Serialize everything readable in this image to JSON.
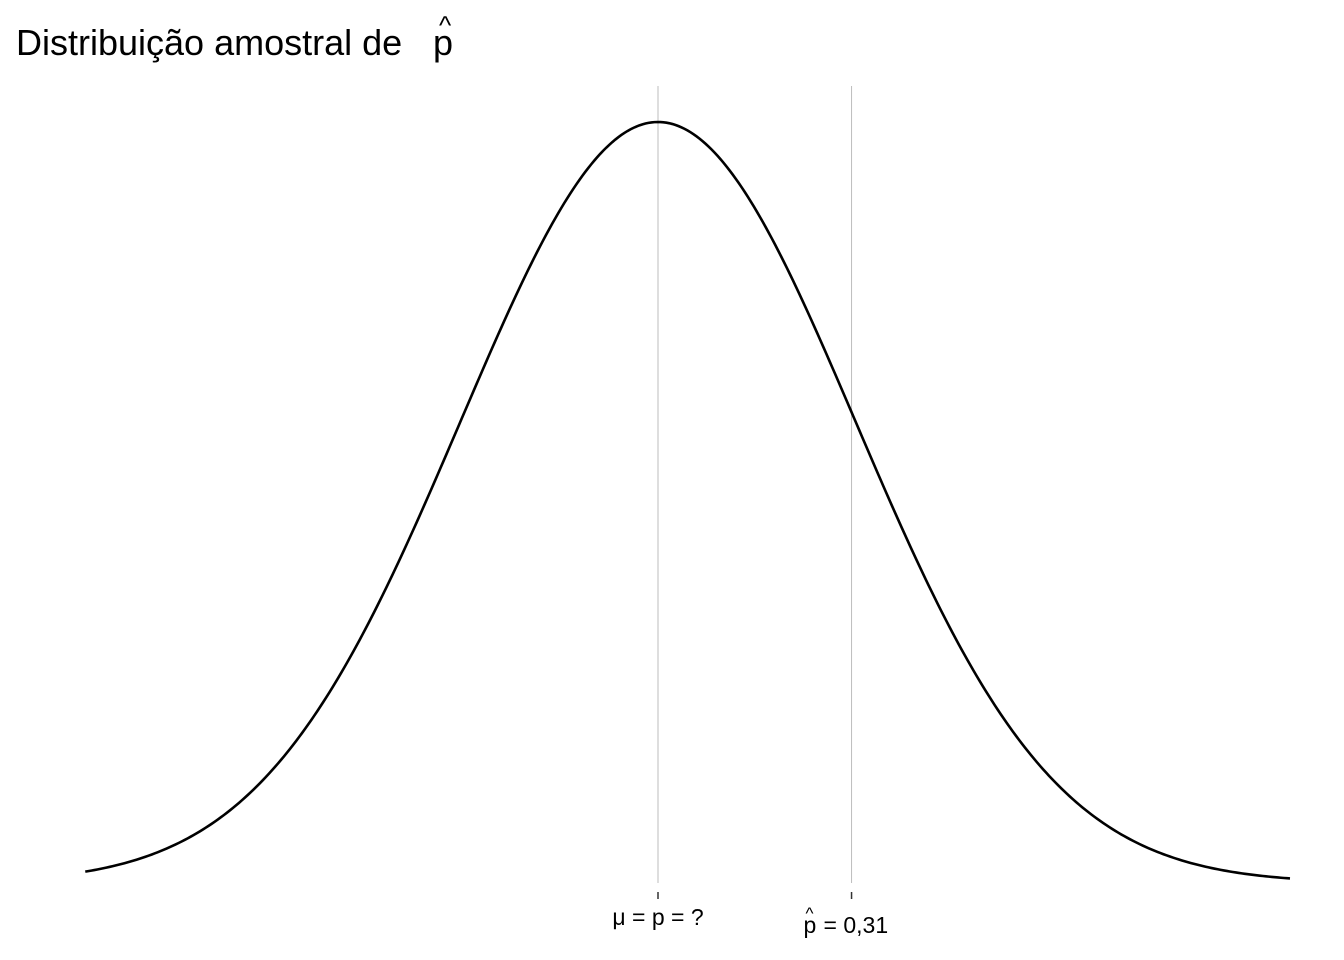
{
  "chart_data": {
    "type": "line",
    "title": "Distribuição amostral de",
    "title_symbol": "p",
    "title_symbol_hat": "^",
    "curve": {
      "distribution": "normal",
      "mean_z": 0,
      "sd_z": 1,
      "x_range_z": [
        -2.9,
        3.2
      ]
    },
    "reference_lines": [
      {
        "name": "mu",
        "z": 0,
        "color": "#bdbdbd"
      },
      {
        "name": "phat",
        "z": 0.98,
        "color": "#bdbdbd"
      }
    ],
    "ticks": [
      {
        "z": 0,
        "label": "μ = p = ?",
        "symbol": "",
        "hat": ""
      },
      {
        "z": 0.98,
        "label": "= 0,31",
        "symbol": "p",
        "hat": "^"
      }
    ],
    "xlabel": "",
    "ylabel": "",
    "grid": false,
    "colors": {
      "curve": "#000000",
      "reference": "#bdbdbd",
      "tick": "#333333"
    }
  }
}
